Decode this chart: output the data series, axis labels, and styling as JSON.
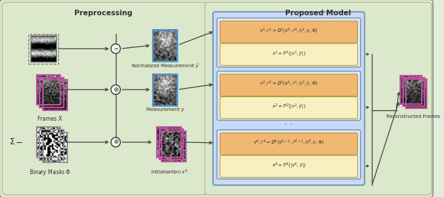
{
  "bg_outer": "#e4edda",
  "bg_left_panel": "#dce8cc",
  "bg_right_panel": "#dce8cc",
  "bg_stage_container": "#c8daf5",
  "bg_orange_box": "#f0b870",
  "bg_yellow_box": "#f8f0c0",
  "border_blue": "#5080c0",
  "border_pink": "#c050a0",
  "border_gray_dashed": "#808080",
  "text_color": "#303030",
  "arrow_color": "#404040",
  "title_preprocessing": "Preprocessing",
  "title_proposed": "Proposed Model",
  "label_frames": "Frames X",
  "label_masks": "Binary Masks Φ",
  "label_norm_meas": "Normalized Measurement $\\bar{y}$",
  "label_meas": "Measurement y",
  "label_init": "Initialization $x^0$",
  "label_recon": "Reconstructed Frames",
  "eq_d1": "$v^1,r^1=\\mathcal{D}^1(x^0,r^0,\\eta^1,y,\\Phi)$",
  "eq_p1": "$x^1=\\mathcal{P}^1(|v^1,\\bar{y}|)$",
  "eq_d2": "$v^2,r^2=\\mathcal{D}^2(x^1,r^1,\\eta^2,y,\\Phi)$",
  "eq_p2": "$x^2=\\mathcal{P}^2(|v^2,\\bar{y}|)$",
  "eq_dk": "$v^K,r^K=\\mathcal{D}^K(x^{K-1},r^{K-1},\\eta^K,y,\\Phi)$",
  "eq_pk": "$x^K=\\mathcal{P}^K(|v^K,\\bar{y}|)$"
}
